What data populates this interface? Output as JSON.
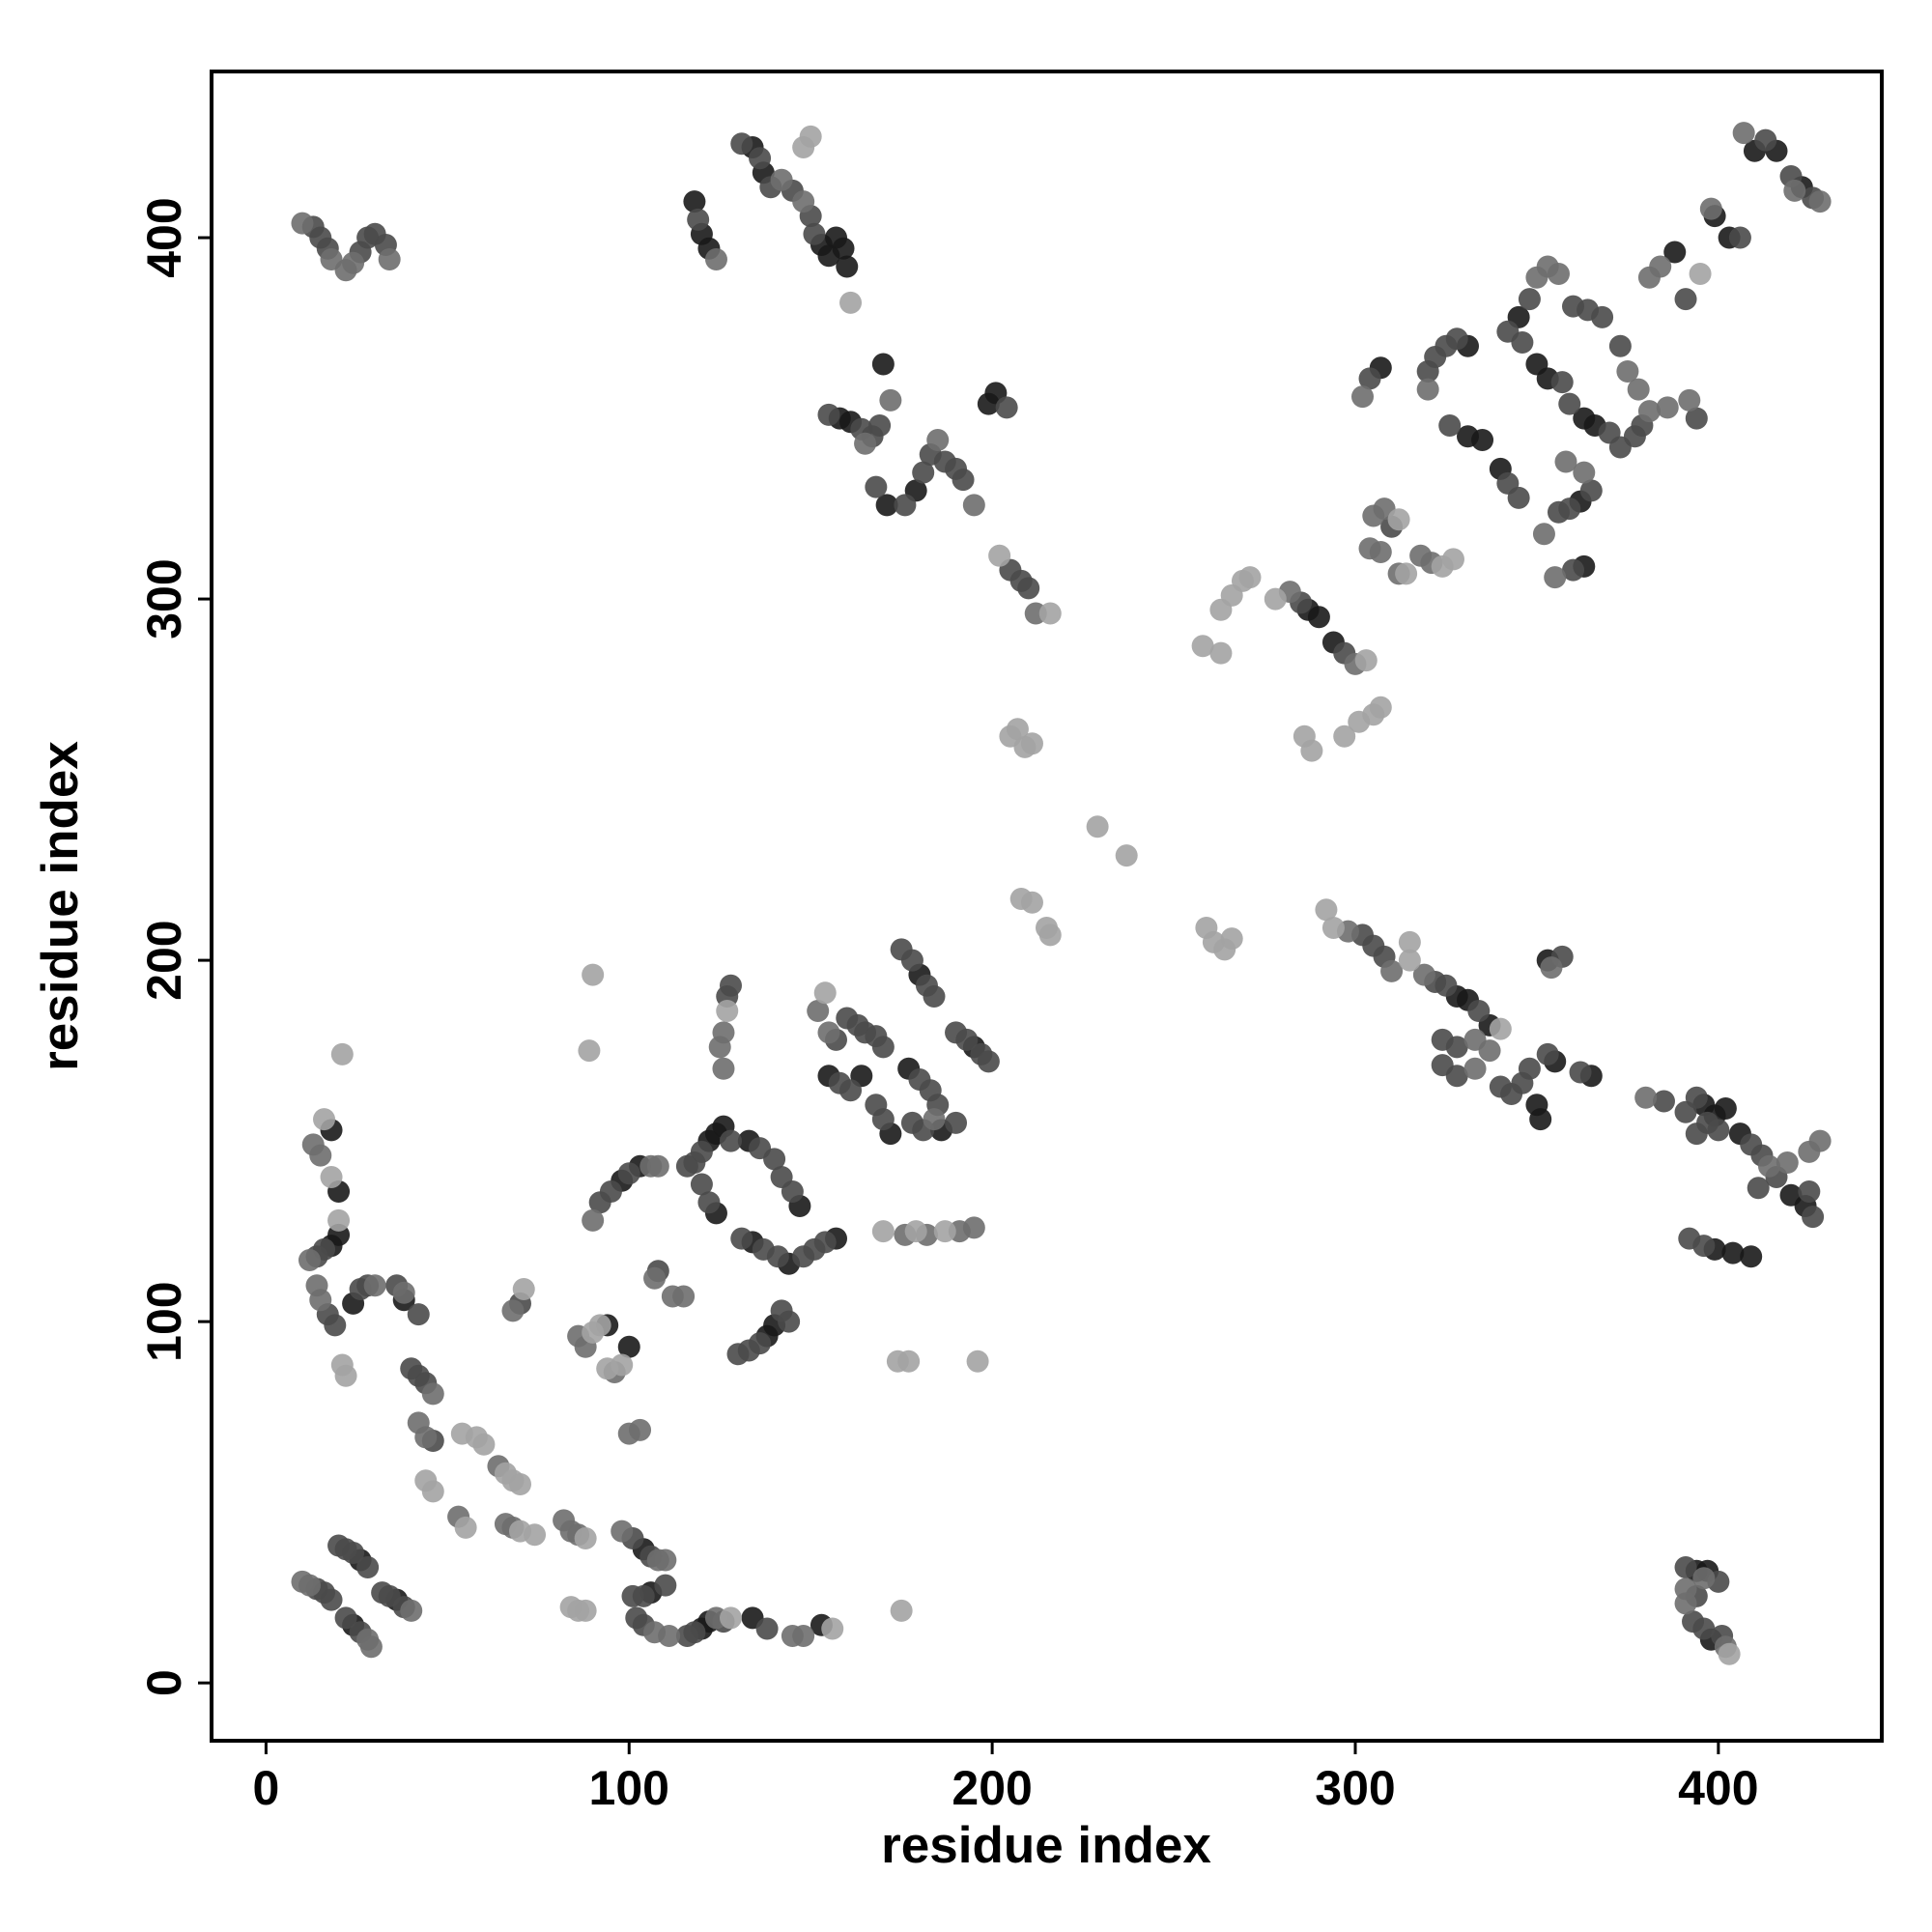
{
  "chart_data": {
    "type": "scatter",
    "xlabel": "residue index",
    "ylabel": "residue index",
    "xlim": [
      -15,
      445
    ],
    "ylim": [
      -16,
      446
    ],
    "xticks": [
      0,
      100,
      200,
      300,
      400
    ],
    "yticks": [
      0,
      100,
      200,
      300,
      400
    ],
    "series": [
      {
        "color": "#1a1a1a",
        "x": [
          118,
          120,
          122,
          134,
          137,
          153,
          155,
          157,
          159,
          160,
          158,
          161,
          170,
          171,
          179,
          199,
          201,
          287,
          290,
          294,
          307,
          331,
          331,
          335,
          345,
          350,
          353,
          363,
          366,
          362,
          363,
          340,
          388,
          399,
          403,
          410,
          416,
          423,
          328,
          331,
          337,
          350,
          351,
          353,
          355,
          365,
          396,
          399,
          402,
          406,
          420,
          424,
          399,
          404,
          409,
          394,
          397,
          398,
          18,
          20,
          20,
          18,
          24,
          38,
          26,
          24,
          36,
          94,
          100,
          98,
          103,
          104,
          106,
          120,
          122,
          134,
          153,
          122,
          124,
          126,
          124,
          133,
          147,
          144,
          157,
          138,
          140,
          134,
          155,
          164,
          172,
          180,
          177,
          186,
          195
        ],
        "values": [
          410,
          401,
          397,
          425,
          418,
          398,
          395,
          400,
          397,
          392,
          350,
          349,
          365,
          326,
          330,
          354,
          357,
          297,
          295,
          288,
          364,
          370,
          345,
          344,
          378,
          365,
          361,
          350,
          348,
          327,
          309,
          336,
          396,
          406,
          400,
          424,
          424,
          414,
          190,
          189,
          182,
          160,
          156,
          200,
          172,
          168,
          160,
          157,
          159,
          152,
          135,
          132,
          120,
          119,
          118,
          31,
          31,
          12,
          153,
          136,
          124,
          121,
          105,
          106,
          34,
          16,
          23,
          99,
          93,
          139,
          143,
          37,
          25,
          15,
          17,
          18,
          16,
          150,
          152,
          154,
          130,
          150,
          132,
          116,
          123,
          96,
          99,
          122,
          168,
          168,
          152,
          196,
          170,
          153,
          176
        ]
      },
      {
        "color": "#4a4a4a",
        "x": [
          13,
          15,
          17,
          26,
          28,
          30,
          33,
          119,
          131,
          136,
          139,
          145,
          150,
          151,
          155,
          164,
          167,
          169,
          168,
          176,
          181,
          183,
          187,
          190,
          192,
          204,
          205,
          208,
          210,
          285,
          297,
          302,
          305,
          308,
          304,
          310,
          320,
          322,
          325,
          328,
          326,
          342,
          348,
          346,
          357,
          359,
          370,
          373,
          377,
          379,
          373,
          368,
          364,
          360,
          356,
          359,
          365,
          360,
          342,
          345,
          391,
          394,
          406,
          413,
          420,
          426,
          322,
          325,
          334,
          324,
          328,
          324,
          328,
          340,
          343,
          346,
          348,
          353,
          357,
          362,
          385,
          391,
          394,
          400,
          409,
          412,
          411,
          416,
          425,
          426,
          392,
          396,
          394,
          397,
          391,
          400,
          394,
          393,
          396,
          401,
          14,
          16,
          18,
          20,
          22,
          24,
          28,
          22,
          26,
          32,
          34,
          38,
          14,
          16,
          17,
          19,
          26,
          28,
          36,
          42,
          40,
          42,
          92,
          95,
          100,
          101,
          106,
          102,
          104,
          101,
          104,
          110,
          116,
          118,
          126,
          138,
          116,
          118,
          120,
          120,
          122,
          127,
          128,
          128,
          136,
          140,
          142,
          145,
          131,
          137,
          141,
          148,
          151,
          154,
          130,
          133,
          136,
          142,
          144,
          157,
          160,
          163,
          165,
          168,
          170,
          158,
          161,
          168,
          170,
          175,
          178,
          182,
          184,
          180,
          183,
          185,
          178,
          181,
          190,
          193,
          197,
          199,
          190,
          108,
          70,
          44,
          46
        ],
        "values": [
          403,
          400,
          397,
          396,
          400,
          401,
          398,
          405,
          426,
          422,
          414,
          413,
          406,
          401,
          351,
          347,
          345,
          348,
          331,
          326,
          335,
          340,
          338,
          336,
          333,
          353,
          308,
          305,
          303,
          299,
          285,
          207,
          204,
          201,
          361,
          320,
          363,
          367,
          370,
          372,
          348,
          374,
          383,
          371,
          360,
          354,
          346,
          342,
          345,
          348,
          370,
          378,
          380,
          381,
          324,
          325,
          330,
          308,
          332,
          328,
          383,
          350,
          400,
          427,
          417,
          411,
          194,
          193,
          186,
          178,
          176,
          171,
          168,
          165,
          163,
          166,
          170,
          174,
          201,
          169,
          161,
          158,
          162,
          153,
          149,
          146,
          137,
          140,
          136,
          129,
          123,
          121,
          152,
          155,
          32,
          28,
          24,
          17,
          15,
          13,
          26,
          25,
          23,
          38,
          37,
          36,
          32,
          18,
          14,
          25,
          24,
          21,
          118,
          120,
          102,
          99,
          109,
          110,
          110,
          102,
          87,
          85,
          133,
          136,
          141,
          40,
          35,
          18,
          16,
          24,
          24,
          27,
          13,
          14,
          17,
          15,
          143,
          144,
          147,
          138,
          133,
          190,
          193,
          150,
          148,
          145,
          140,
          136,
          123,
          120,
          118,
          118,
          120,
          122,
          91,
          92,
          94,
          103,
          100,
          178,
          184,
          182,
          180,
          179,
          176,
          166,
          164,
          160,
          156,
          203,
          200,
          193,
          190,
          167,
          164,
          160,
          155,
          153,
          180,
          178,
          174,
          172,
          155,
          114,
          105,
          83,
          67
        ]
      },
      {
        "color": "#6e6e6e",
        "x": [
          10,
          18,
          22,
          24,
          34,
          124,
          142,
          148,
          172,
          165,
          185,
          195,
          212,
          282,
          300,
          298,
          310,
          302,
          305,
          308,
          304,
          307,
          312,
          318,
          321,
          320,
          350,
          353,
          356,
          381,
          378,
          375,
          352,
          363,
          358,
          355,
          381,
          384,
          392,
          386,
          398,
          407,
          428,
          421,
          319,
          333,
          333,
          337,
          354,
          380,
          414,
          419,
          428,
          425,
          391,
          402,
          391,
          396,
          10,
          12,
          28,
          29,
          40,
          12,
          13,
          15,
          14,
          15,
          30,
          38,
          46,
          42,
          44,
          53,
          64,
          66,
          68,
          68,
          82,
          84,
          86,
          90,
          106,
          108,
          98,
          108,
          107,
          111,
          100,
          103,
          107,
          112,
          115,
          124,
          145,
          148,
          125,
          126,
          126,
          152,
          155,
          184,
          176,
          182,
          191,
          195,
          88,
          86,
          96,
          110
        ],
        "values": [
          404,
          394,
          391,
          393,
          394,
          394,
          416,
          410,
          355,
          343,
          344,
          326,
          296,
          302,
          282,
          208,
          197,
          356,
          323,
          325,
          314,
          313,
          307,
          312,
          310,
          358,
          389,
          392,
          390,
          352,
          358,
          363,
          318,
          335,
          338,
          306,
          389,
          392,
          355,
          353,
          408,
          429,
          410,
          413,
          196,
          178,
          170,
          175,
          198,
          162,
          143,
          144,
          150,
          147,
          22,
          10,
          26,
          29,
          28,
          27,
          12,
          10,
          20,
          117,
          149,
          146,
          110,
          106,
          110,
          108,
          80,
          72,
          68,
          46,
          60,
          44,
          43,
          103,
          45,
          42,
          41,
          128,
          143,
          143,
          42,
          34,
          14,
          13,
          69,
          70,
          112,
          107,
          107,
          18,
          13,
          13,
          176,
          180,
          170,
          186,
          180,
          156,
          124,
          124,
          125,
          126,
          93,
          96,
          86,
          34
        ]
      },
      {
        "color": "#a3a3a3",
        "x": [
          150,
          148,
          161,
          202,
          216,
          205,
          207,
          209,
          211,
          208,
          211,
          215,
          216,
          229,
          237,
          259,
          261,
          264,
          266,
          258,
          263,
          263,
          266,
          269,
          271,
          278,
          303,
          286,
          288,
          297,
          301,
          305,
          307,
          292,
          294,
          315,
          315,
          312,
          314,
          324,
          327,
          395,
          403,
          16,
          18,
          20,
          21,
          21,
          22,
          44,
          46,
          55,
          54,
          58,
          60,
          66,
          68,
          70,
          70,
          74,
          71,
          88,
          84,
          86,
          88,
          90,
          92,
          94,
          98,
          89,
          90,
          128,
          156,
          127,
          154,
          170,
          179,
          187,
          174,
          177,
          196,
          175,
          340
        ],
        "values": [
          428,
          425,
          382,
          312,
          296,
          262,
          264,
          259,
          260,
          217,
          216,
          209,
          207,
          237,
          229,
          209,
          205,
          203,
          206,
          287,
          285,
          297,
          301,
          305,
          306,
          300,
          283,
          262,
          258,
          262,
          266,
          268,
          270,
          214,
          209,
          205,
          200,
          322,
          307,
          309,
          311,
          390,
          8,
          156,
          140,
          128,
          174,
          88,
          85,
          56,
          53,
          43,
          69,
          68,
          66,
          58,
          56,
          55,
          42,
          41,
          109,
          40,
          21,
          20,
          20,
          97,
          99,
          87,
          88,
          175,
          196,
          18,
          15,
          186,
          191,
          125,
          125,
          125,
          89,
          89,
          89,
          20,
          181
        ]
      }
    ]
  }
}
